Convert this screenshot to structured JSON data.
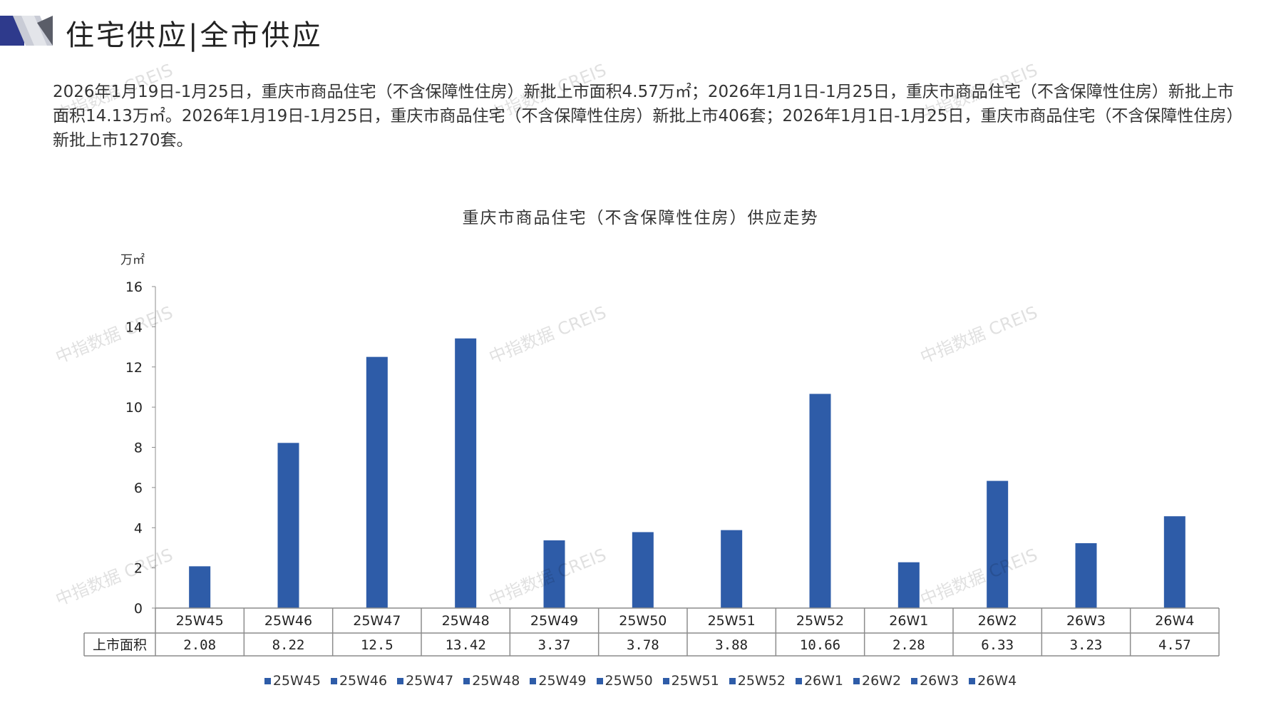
{
  "header": {
    "title": "住宅供应|全市供应"
  },
  "summary": "2026年1月19日-1月25日，重庆市商品住宅（不含保障性住房）新批上市面积4.57万㎡；2026年1月1日-1月25日，重庆市商品住宅（不含保障性住房）新批上市面积14.13万㎡。2026年1月19日-1月25日，重庆市商品住宅（不含保障性住房）新批上市406套；2026年1月1日-1月25日，重庆市商品住宅（不含保障性住房）新批上市1270套。",
  "watermark": "中指数据 CREIS",
  "colors": {
    "bar": "#2e5ca8",
    "accent_dark": "#2e3a8c",
    "accent_light": "#c9ccd6"
  },
  "chart_data": {
    "type": "bar",
    "title": "重庆市商品住宅（不含保障性住房）供应走势",
    "ylabel": "万㎡",
    "ylim": [
      0,
      16
    ],
    "yticks": [
      0,
      2,
      4,
      6,
      8,
      10,
      12,
      14,
      16
    ],
    "categories": [
      "25W45",
      "25W46",
      "25W47",
      "25W48",
      "25W49",
      "25W50",
      "25W51",
      "25W52",
      "26W1",
      "26W2",
      "26W3",
      "26W4"
    ],
    "series": [
      {
        "name": "上市面积",
        "values": [
          2.08,
          8.22,
          12.5,
          13.42,
          3.37,
          3.78,
          3.88,
          10.66,
          2.28,
          6.33,
          3.23,
          4.57
        ]
      }
    ],
    "value_labels": [
      "2.08",
      "8.22",
      "12.5",
      "13.42",
      "3.37",
      "3.78",
      "3.88",
      "10.66",
      "2.28",
      "6.33",
      "3.23",
      "4.57"
    ],
    "legend": [
      "25W45",
      "25W46",
      "25W47",
      "25W48",
      "25W49",
      "25W50",
      "25W51",
      "25W52",
      "26W1",
      "26W2",
      "26W3",
      "26W4"
    ],
    "legend_position": "bottom",
    "grid": false
  }
}
